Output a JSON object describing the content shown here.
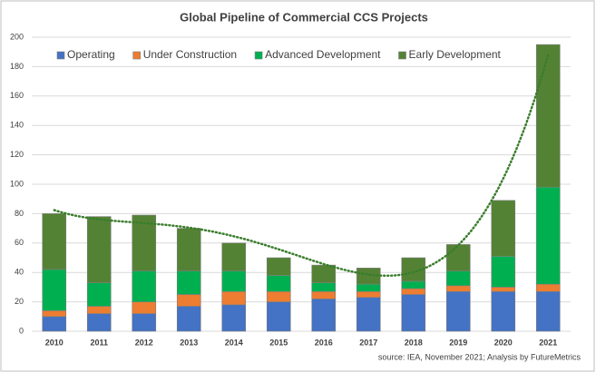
{
  "chart_data": {
    "type": "stacked_bar",
    "title": "Global Pipeline of Commercial CCS Projects",
    "source": "source: IEA, November 2021; Analysis by FutureMetrics",
    "categories": [
      "2010",
      "2011",
      "2012",
      "2013",
      "2014",
      "2015",
      "2016",
      "2017",
      "2018",
      "2019",
      "2020",
      "2021"
    ],
    "series": [
      {
        "name": "Operating",
        "color": "#4472c4",
        "values": [
          10,
          12,
          12,
          17,
          18,
          20,
          22,
          23,
          25,
          27,
          27,
          27
        ]
      },
      {
        "name": "Under Construction",
        "color": "#ed7d31",
        "values": [
          4,
          5,
          8,
          8,
          9,
          7,
          5,
          4,
          4,
          4,
          3,
          5
        ]
      },
      {
        "name": "Advanced Development",
        "color": "#00b050",
        "values": [
          28,
          16,
          21,
          16,
          14,
          11,
          6,
          5,
          5,
          10,
          21,
          66
        ]
      },
      {
        "name": "Early Development",
        "color": "#548235",
        "values": [
          38,
          45,
          38,
          29,
          19,
          12,
          12,
          11,
          16,
          18,
          38,
          97
        ]
      }
    ],
    "ylim": [
      0,
      200
    ],
    "yticks": [
      0,
      20,
      40,
      60,
      80,
      100,
      120,
      140,
      160,
      180,
      200
    ],
    "grid": true,
    "legend": "top-left",
    "trendline": "polynomial"
  }
}
